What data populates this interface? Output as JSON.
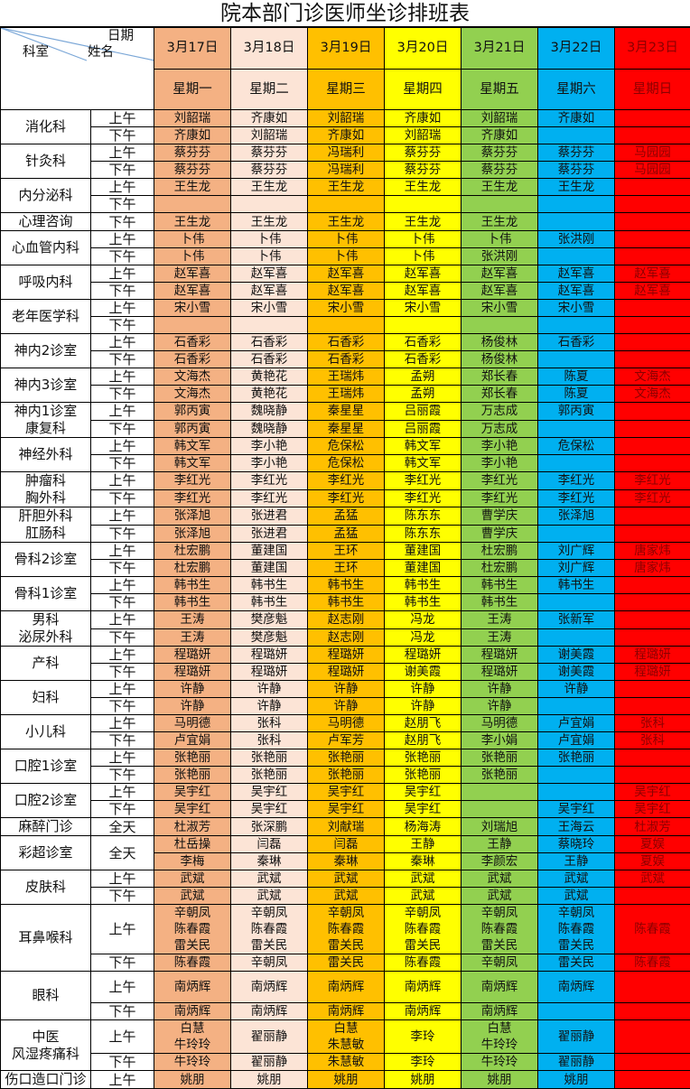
{
  "title": "院本部门诊医师坐诊排班表",
  "header": {
    "date_label": "日期",
    "dept_label": "科室",
    "name_label": "姓名",
    "dates": [
      "3月17日",
      "3月18日",
      "3月19日",
      "3月20日",
      "3月21日",
      "3月22日",
      "3月23日"
    ],
    "weekdays": [
      "星期一",
      "星期二",
      "星期三",
      "星期四",
      "星期五",
      "星期六",
      "星期日"
    ]
  },
  "column_colors": [
    "#F4B183",
    "#FCE4D6",
    "#FFC000",
    "#FFFF00",
    "#92D050",
    "#00B0F0",
    "#FF0000"
  ],
  "departments": [
    {
      "name": "消化科",
      "sessions": [
        {
          "label": "上午",
          "rows": [
            [
              "刘韶瑞",
              "齐康如",
              "刘韶瑞",
              "齐康如",
              "刘韶瑞",
              "齐康如",
              ""
            ]
          ]
        },
        {
          "label": "下午",
          "rows": [
            [
              "齐康如",
              "刘韶瑞",
              "齐康如",
              "刘韶瑞",
              "齐康如",
              "",
              ""
            ]
          ]
        }
      ]
    },
    {
      "name": "针灸科",
      "sessions": [
        {
          "label": "上午",
          "rows": [
            [
              "蔡芬芬",
              "蔡芬芬",
              "冯瑞利",
              "蔡芬芬",
              "蔡芬芬",
              "蔡芬芬",
              "马园园"
            ]
          ]
        },
        {
          "label": "下午",
          "rows": [
            [
              "蔡芬芬",
              "蔡芬芬",
              "冯瑞利",
              "蔡芬芬",
              "蔡芬芬",
              "蔡芬芬",
              "马园园"
            ]
          ]
        }
      ]
    },
    {
      "name": "内分泌科",
      "sessions": [
        {
          "label": "上午",
          "rows": [
            [
              "王生龙",
              "王生龙",
              "王生龙",
              "王生龙",
              "王生龙",
              "王生龙",
              ""
            ]
          ]
        },
        {
          "label": "下午",
          "rows": [
            [
              "",
              "",
              "",
              "",
              "",
              "",
              ""
            ]
          ]
        }
      ]
    },
    {
      "name": "心理咨询",
      "sessions": [
        {
          "label": "下午",
          "rows": [
            [
              "王生龙",
              "王生龙",
              "王生龙",
              "王生龙",
              "王生龙",
              "",
              ""
            ]
          ]
        }
      ]
    },
    {
      "name": "心血管内科",
      "sessions": [
        {
          "label": "上午",
          "rows": [
            [
              "卜伟",
              "卜伟",
              "卜伟",
              "卜伟",
              "卜伟",
              "张洪刚",
              ""
            ]
          ]
        },
        {
          "label": "下午",
          "rows": [
            [
              "卜伟",
              "卜伟",
              "卜伟",
              "卜伟",
              "张洪刚",
              "",
              ""
            ]
          ]
        }
      ]
    },
    {
      "name": "呼吸内科",
      "sessions": [
        {
          "label": "上午",
          "rows": [
            [
              "赵军喜",
              "赵军喜",
              "赵军喜",
              "赵军喜",
              "赵军喜",
              "赵军喜",
              "赵军喜"
            ]
          ]
        },
        {
          "label": "下午",
          "rows": [
            [
              "赵军喜",
              "赵军喜",
              "赵军喜",
              "赵军喜",
              "赵军喜",
              "赵军喜",
              "赵军喜"
            ]
          ]
        }
      ]
    },
    {
      "name": "老年医学科",
      "sessions": [
        {
          "label": "上午",
          "rows": [
            [
              "宋小雪",
              "宋小雪",
              "宋小雪",
              "宋小雪",
              "宋小雪",
              "宋小雪",
              ""
            ]
          ]
        },
        {
          "label": "下午",
          "rows": [
            [
              "",
              "",
              "",
              "",
              "",
              "",
              ""
            ]
          ]
        }
      ]
    },
    {
      "name": "神内2诊室",
      "sessions": [
        {
          "label": "上午",
          "rows": [
            [
              "石香彩",
              "石香彩",
              "石香彩",
              "石香彩",
              "杨俊林",
              "石香彩",
              ""
            ]
          ]
        },
        {
          "label": "下午",
          "rows": [
            [
              "石香彩",
              "石香彩",
              "石香彩",
              "石香彩",
              "杨俊林",
              "",
              ""
            ]
          ]
        }
      ]
    },
    {
      "name": "神内3诊室",
      "sessions": [
        {
          "label": "上午",
          "rows": [
            [
              "文海杰",
              "黄艳花",
              "王瑞炜",
              "孟朔",
              "郑长春",
              "陈夏",
              "文海杰"
            ]
          ]
        },
        {
          "label": "下午",
          "rows": [
            [
              "文海杰",
              "黄艳花",
              "王瑞炜",
              "孟朔",
              "郑长春",
              "陈夏",
              "文海杰"
            ]
          ]
        }
      ]
    },
    {
      "name": "神内1诊室\n康复科",
      "sessions": [
        {
          "label": "上午",
          "rows": [
            [
              "郭丙寅",
              "魏晓静",
              "秦星星",
              "吕丽霞",
              "万志成",
              "郭丙寅",
              ""
            ]
          ]
        },
        {
          "label": "下午",
          "rows": [
            [
              "郭丙寅",
              "魏晓静",
              "秦星星",
              "吕丽霞",
              "万志成",
              "",
              ""
            ]
          ]
        }
      ]
    },
    {
      "name": "神经外科",
      "sessions": [
        {
          "label": "上午",
          "rows": [
            [
              "韩文军",
              "李小艳",
              "危保松",
              "韩文军",
              "李小艳",
              "危保松",
              ""
            ]
          ]
        },
        {
          "label": "下午",
          "rows": [
            [
              "韩文军",
              "李小艳",
              "危保松",
              "韩文军",
              "李小艳",
              "",
              ""
            ]
          ]
        }
      ]
    },
    {
      "name": "肿瘤科\n胸外科",
      "sessions": [
        {
          "label": "上午",
          "rows": [
            [
              "李红光",
              "李红光",
              "李红光",
              "李红光",
              "李红光",
              "李红光",
              "李红光"
            ]
          ]
        },
        {
          "label": "下午",
          "rows": [
            [
              "李红光",
              "李红光",
              "李红光",
              "李红光",
              "李红光",
              "李红光",
              "李红光"
            ]
          ]
        }
      ]
    },
    {
      "name": "肝胆外科\n肛肠科",
      "sessions": [
        {
          "label": "上午",
          "rows": [
            [
              "张泽旭",
              "张进君",
              "孟猛",
              "陈东东",
              "曹学庆",
              "张泽旭",
              ""
            ]
          ]
        },
        {
          "label": "下午",
          "rows": [
            [
              "张泽旭",
              "张进君",
              "孟猛",
              "陈东东",
              "曹学庆",
              "",
              ""
            ]
          ]
        }
      ]
    },
    {
      "name": "骨科2诊室",
      "sessions": [
        {
          "label": "上午",
          "rows": [
            [
              "杜宏鹏",
              "董建国",
              "王环",
              "董建国",
              "杜宏鹏",
              "刘广辉",
              "唐家炜"
            ]
          ]
        },
        {
          "label": "下午",
          "rows": [
            [
              "杜宏鹏",
              "董建国",
              "王环",
              "董建国",
              "杜宏鹏",
              "刘广辉",
              "唐家炜"
            ]
          ]
        }
      ]
    },
    {
      "name": "骨科1诊室",
      "sessions": [
        {
          "label": "上午",
          "rows": [
            [
              "韩书生",
              "韩书生",
              "韩书生",
              "韩书生",
              "韩书生",
              "韩书生",
              ""
            ]
          ]
        },
        {
          "label": "下午",
          "rows": [
            [
              "韩书生",
              "韩书生",
              "韩书生",
              "韩书生",
              "韩书生",
              "",
              ""
            ]
          ]
        }
      ]
    },
    {
      "name": "男科\n泌尿外科",
      "sessions": [
        {
          "label": "上午",
          "rows": [
            [
              "王涛",
              "樊彦魁",
              "赵志刚",
              "冯龙",
              "王涛",
              "张新军",
              ""
            ]
          ]
        },
        {
          "label": "下午",
          "rows": [
            [
              "王涛",
              "樊彦魁",
              "赵志刚",
              "冯龙",
              "王涛",
              "",
              ""
            ]
          ]
        }
      ]
    },
    {
      "name": "产科",
      "sessions": [
        {
          "label": "上午",
          "rows": [
            [
              "程璐妍",
              "程璐妍",
              "程璐妍",
              "程璐妍",
              "程璐妍",
              "谢美霞",
              "程璐妍"
            ]
          ]
        },
        {
          "label": "下午",
          "rows": [
            [
              "程璐妍",
              "程璐妍",
              "程璐妍",
              "谢美霞",
              "程璐妍",
              "谢美霞",
              "程璐妍"
            ]
          ]
        }
      ]
    },
    {
      "name": "妇科",
      "sessions": [
        {
          "label": "上午",
          "rows": [
            [
              "许静",
              "许静",
              "许静",
              "许静",
              "许静",
              "许静",
              ""
            ]
          ]
        },
        {
          "label": "下午",
          "rows": [
            [
              "许静",
              "许静",
              "许静",
              "许静",
              "许静",
              "",
              ""
            ]
          ]
        }
      ]
    },
    {
      "name": "小儿科",
      "sessions": [
        {
          "label": "上午",
          "rows": [
            [
              "马明德",
              "张科",
              "马明德",
              "赵朋飞",
              "马明德",
              "卢宜娟",
              "张科"
            ]
          ]
        },
        {
          "label": "下午",
          "rows": [
            [
              "卢宜娟",
              "张科",
              "卢军芳",
              "赵朋飞",
              "李小娟",
              "卢宜娟",
              "张科"
            ]
          ]
        }
      ]
    },
    {
      "name": "口腔1诊室",
      "sessions": [
        {
          "label": "上午",
          "rows": [
            [
              "张艳丽",
              "张艳丽",
              "张艳丽",
              "张艳丽",
              "张艳丽",
              "张艳丽",
              ""
            ]
          ]
        },
        {
          "label": "下午",
          "rows": [
            [
              "张艳丽",
              "张艳丽",
              "张艳丽",
              "张艳丽",
              "张艳丽",
              "",
              ""
            ]
          ]
        }
      ]
    },
    {
      "name": "口腔2诊室",
      "sessions": [
        {
          "label": "上午",
          "rows": [
            [
              "吴宇红",
              "吴宇红",
              "吴宇红",
              "吴宇红",
              "",
              "",
              "吴宇红"
            ]
          ]
        },
        {
          "label": "下午",
          "rows": [
            [
              "吴宇红",
              "吴宇红",
              "吴宇红",
              "吴宇红",
              "",
              "吴宇红",
              "吴宇红"
            ]
          ]
        }
      ]
    },
    {
      "name": "麻醉门诊",
      "sessions": [
        {
          "label": "全天",
          "rows": [
            [
              "杜淑芳",
              "张深鹏",
              "刘献瑞",
              "杨海涛",
              "刘瑞旭",
              "王海云",
              "杜淑芳"
            ]
          ]
        }
      ]
    },
    {
      "name": "彩超诊室",
      "sessions": [
        {
          "label": "全天",
          "rows": [
            [
              "杜岳操",
              "闫磊",
              "闫磊",
              "王静",
              "王静",
              "蔡晓玲",
              "夏娱"
            ],
            [
              "李梅",
              "秦琳",
              "秦琳",
              "秦琳",
              "李颜宏",
              "王静",
              "夏娱"
            ]
          ]
        }
      ]
    },
    {
      "name": "皮肤科",
      "sessions": [
        {
          "label": "上午",
          "rows": [
            [
              "武斌",
              "武斌",
              "武斌",
              "武斌",
              "武斌",
              "武斌",
              "武斌"
            ]
          ]
        },
        {
          "label": "下午",
          "rows": [
            [
              "武斌",
              "武斌",
              "武斌",
              "武斌",
              "武斌",
              "武斌",
              ""
            ]
          ]
        }
      ]
    },
    {
      "name": "耳鼻喉科",
      "sessions": [
        {
          "label": "上午",
          "rows": [
            [
              "辛朝凤\n陈春霞\n雷关民",
              "辛朝凤\n陈春霞\n雷关民",
              "辛朝凤\n陈春霞\n雷关民",
              "辛朝凤\n陈春霞\n雷关民",
              "辛朝凤\n陈春霞\n雷关民",
              "辛朝凤\n陈春霞\n雷关民",
              "陈春霞"
            ]
          ]
        },
        {
          "label": "下午",
          "rows": [
            [
              "陈春霞",
              "辛朝凤",
              "雷关民",
              "陈春霞",
              "辛朝凤",
              "雷关民",
              "陈春霞"
            ]
          ]
        }
      ]
    },
    {
      "name": "眼科",
      "sessions": [
        {
          "label": "上午",
          "rows": [
            [
              "南炳辉",
              "南炳辉",
              "南炳辉",
              "南炳辉",
              "南炳辉",
              "南炳辉",
              ""
            ]
          ]
        },
        {
          "label": "下午",
          "rows": [
            [
              "南炳辉",
              "南炳辉",
              "南炳辉",
              "南炳辉",
              "南炳辉",
              "",
              ""
            ]
          ]
        }
      ]
    },
    {
      "name": "中医\n风湿疼痛科",
      "sessions": [
        {
          "label": "上午",
          "rows": [
            [
              "白慧\n牛玲玲",
              "翟丽静",
              "白慧\n朱慧敏",
              "李玲",
              "白慧\n牛玲玲",
              "翟丽静",
              ""
            ]
          ]
        },
        {
          "label": "下午",
          "rows": [
            [
              "牛玲玲",
              "翟丽静",
              "朱慧敏",
              "李玲",
              "牛玲玲",
              "翟丽静",
              ""
            ]
          ]
        }
      ]
    },
    {
      "name": "伤口造口门诊",
      "sessions": [
        {
          "label": "上午",
          "rows": [
            [
              "姚朋",
              "姚朋",
              "姚朋",
              "姚朋",
              "姚朋",
              "姚朋",
              ""
            ]
          ]
        }
      ]
    }
  ]
}
